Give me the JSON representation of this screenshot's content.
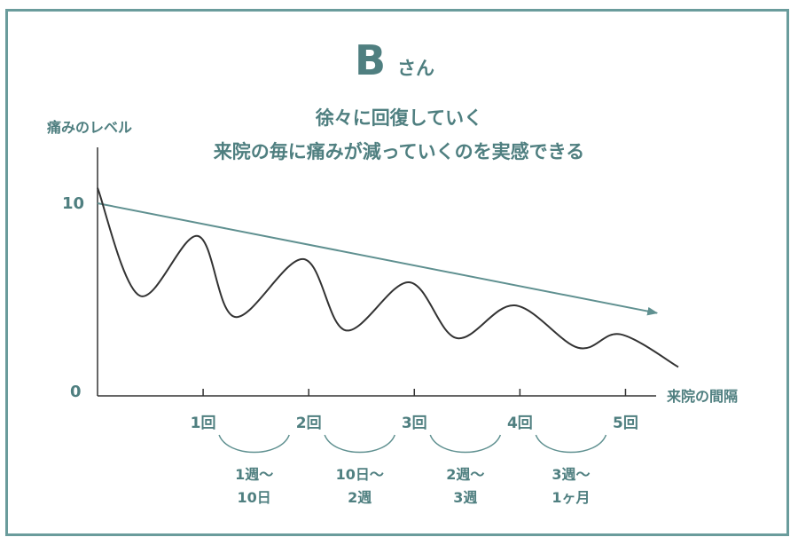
{
  "header": {
    "title_letter": "B",
    "title_suffix": "さん",
    "subtitle_line1": "徐々に回復していく",
    "subtitle_line2": "来院の毎に痛みが減っていくのを実感できる"
  },
  "colors": {
    "accent": "#4f7f80",
    "border": "#6a9c9c",
    "curve": "#333333",
    "trend_arrow": "#5f9090"
  },
  "chart_data": {
    "type": "line",
    "ylabel": "痛みのレベル",
    "xlabel": "来院の間隔",
    "ylim": [
      0,
      10
    ],
    "y_ticks": [
      "10",
      "0"
    ],
    "visit_ticks": [
      "1回",
      "2回",
      "3回",
      "4回",
      "5回"
    ],
    "intervals": [
      {
        "line1": "1週〜",
        "line2": "10日"
      },
      {
        "line1": "10日〜",
        "line2": "2週"
      },
      {
        "line1": "2週〜",
        "line2": "3週"
      },
      {
        "line1": "3週〜",
        "line2": "1ヶ月"
      }
    ],
    "series": [
      {
        "values": [
          {
            "x": 0.0,
            "y": 10.8
          },
          {
            "x": 0.4,
            "y": 5.2
          },
          {
            "x": 0.95,
            "y": 8.3
          },
          {
            "x": 1.3,
            "y": 4.1
          },
          {
            "x": 1.95,
            "y": 7.1
          },
          {
            "x": 2.35,
            "y": 3.4
          },
          {
            "x": 2.95,
            "y": 5.9
          },
          {
            "x": 3.4,
            "y": 3.0
          },
          {
            "x": 3.95,
            "y": 4.7
          },
          {
            "x": 4.55,
            "y": 2.5
          },
          {
            "x": 4.95,
            "y": 3.2
          },
          {
            "x": 5.5,
            "y": 1.5
          }
        ]
      }
    ],
    "trend": {
      "start": {
        "x": 0.0,
        "y": 10.0
      },
      "end": {
        "x": 5.5,
        "y": 4.3
      }
    },
    "grid": false,
    "legend": "none"
  }
}
